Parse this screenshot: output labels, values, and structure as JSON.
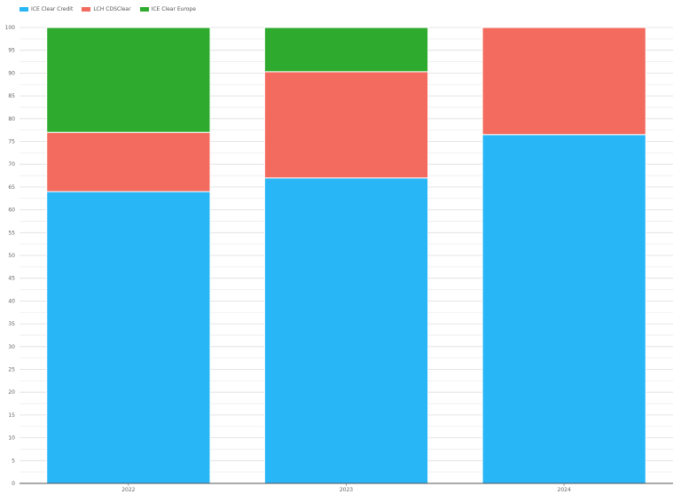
{
  "chart_data": {
    "type": "bar",
    "stacked": true,
    "categories": [
      "2022",
      "2023",
      "2024"
    ],
    "series": [
      {
        "name": "ICE Clear Credit",
        "color": "#29b6f6",
        "values": [
          64,
          67,
          76.5
        ]
      },
      {
        "name": "LCH CDSClear",
        "color": "#f26b5e",
        "values": [
          13,
          23.3,
          23.5
        ]
      },
      {
        "name": "ICE Clear Europe",
        "color": "#2eaa2e",
        "values": [
          23,
          9.7,
          0
        ]
      }
    ],
    "title": "",
    "xlabel": "",
    "ylabel": "",
    "ylim": [
      0,
      100
    ],
    "yticks": [
      "0",
      "5",
      "10",
      "15",
      "20",
      "25",
      "30",
      "35",
      "40",
      "45",
      "50",
      "55",
      "60",
      "65",
      "70",
      "75",
      "80",
      "85",
      "90",
      "95",
      "100"
    ],
    "grid": true,
    "legend_position": "top-left"
  }
}
